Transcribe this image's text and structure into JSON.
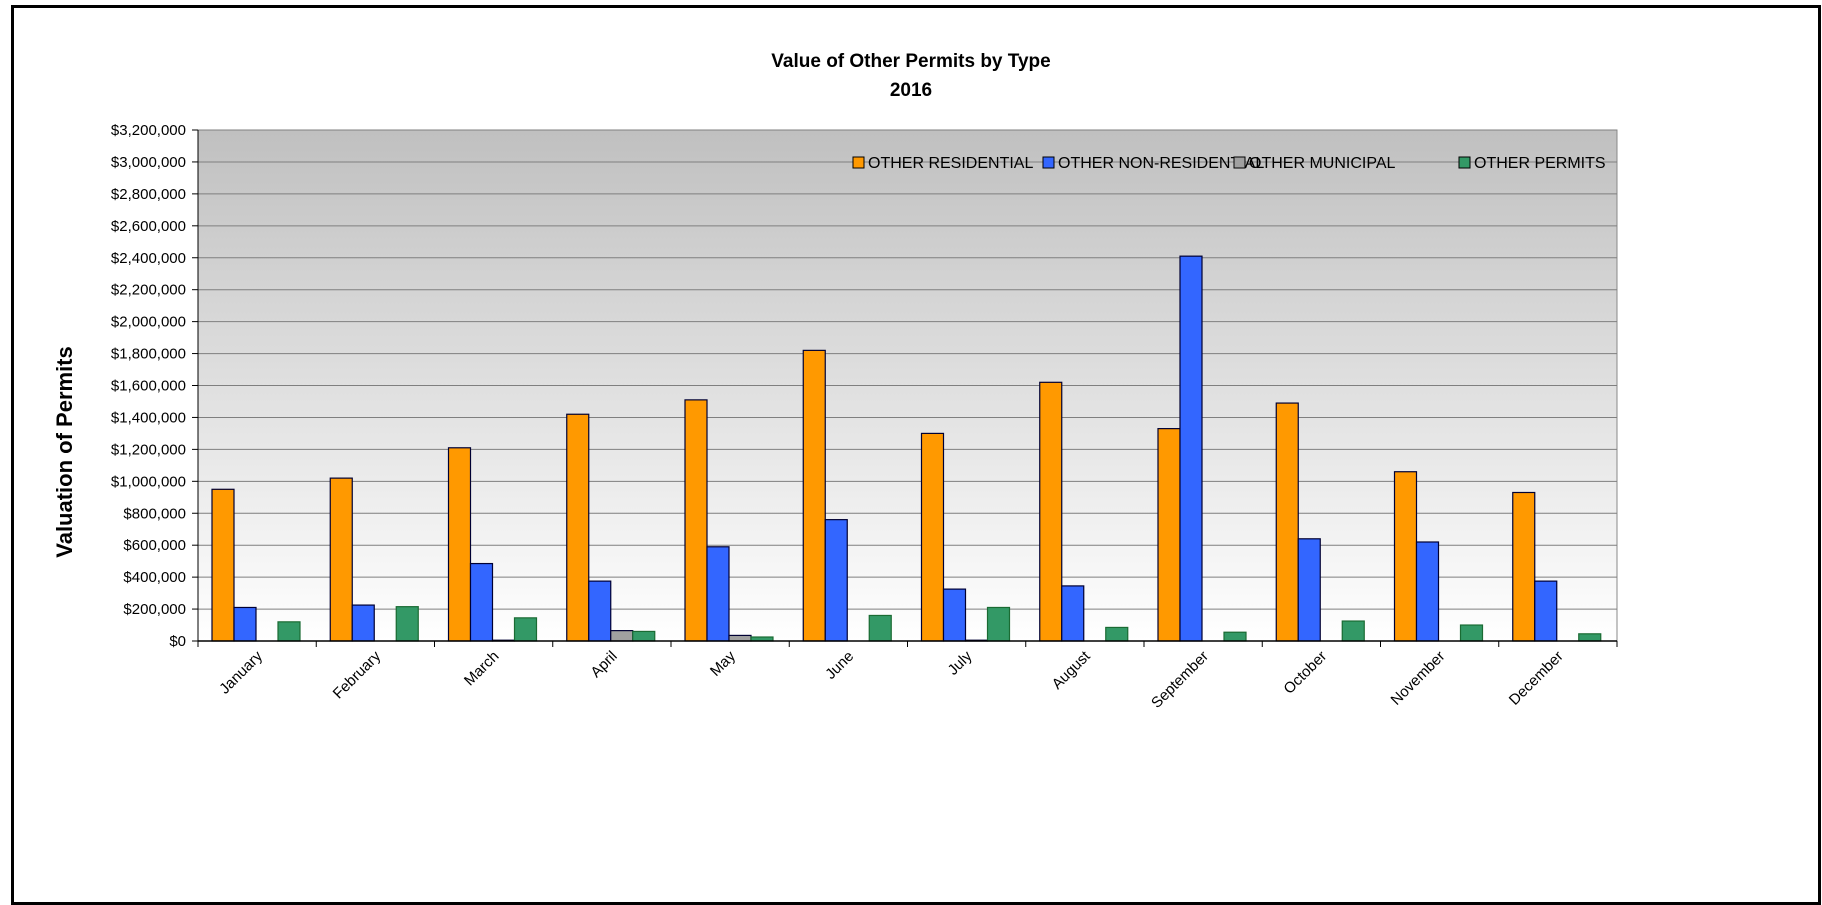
{
  "chart_data": {
    "type": "bar",
    "title": "Value of Other Permits by Type",
    "subtitle": "2016",
    "xlabel": "",
    "ylabel": "Valuation of Permits",
    "ylim": [
      0,
      3200000
    ],
    "ytick_step": 200000,
    "ytick_labels": [
      "$0",
      "$200,000",
      "$400,000",
      "$600,000",
      "$800,000",
      "$1,000,000",
      "$1,200,000",
      "$1,400,000",
      "$1,600,000",
      "$1,800,000",
      "$2,000,000",
      "$2,200,000",
      "$2,400,000",
      "$2,600,000",
      "$2,800,000",
      "$3,000,000",
      "$3,200,000"
    ],
    "categories": [
      "January",
      "February",
      "March",
      "April",
      "May",
      "June",
      "July",
      "August",
      "September",
      "October",
      "November",
      "December"
    ],
    "grid": true,
    "legend_position": "top-right",
    "series": [
      {
        "name": "OTHER RESIDENTIAL",
        "color": "#FF9900",
        "values": [
          950000,
          1020000,
          1210000,
          1420000,
          1510000,
          1820000,
          1300000,
          1620000,
          1330000,
          1490000,
          1060000,
          930000
        ]
      },
      {
        "name": "OTHER NON-RESIDENTIAL",
        "color": "#3366FF",
        "values": [
          210000,
          225000,
          485000,
          375000,
          590000,
          760000,
          325000,
          345000,
          2410000,
          640000,
          620000,
          375000
        ]
      },
      {
        "name": "OTHER MUNICIPAL",
        "color": "#A0A0A0",
        "values": [
          0,
          0,
          5000,
          65000,
          35000,
          0,
          5000,
          0,
          0,
          0,
          0,
          0
        ]
      },
      {
        "name": "OTHER PERMITS",
        "color": "#339966",
        "values": [
          120000,
          215000,
          145000,
          60000,
          25000,
          160000,
          210000,
          85000,
          55000,
          125000,
          100000,
          45000
        ]
      }
    ]
  }
}
